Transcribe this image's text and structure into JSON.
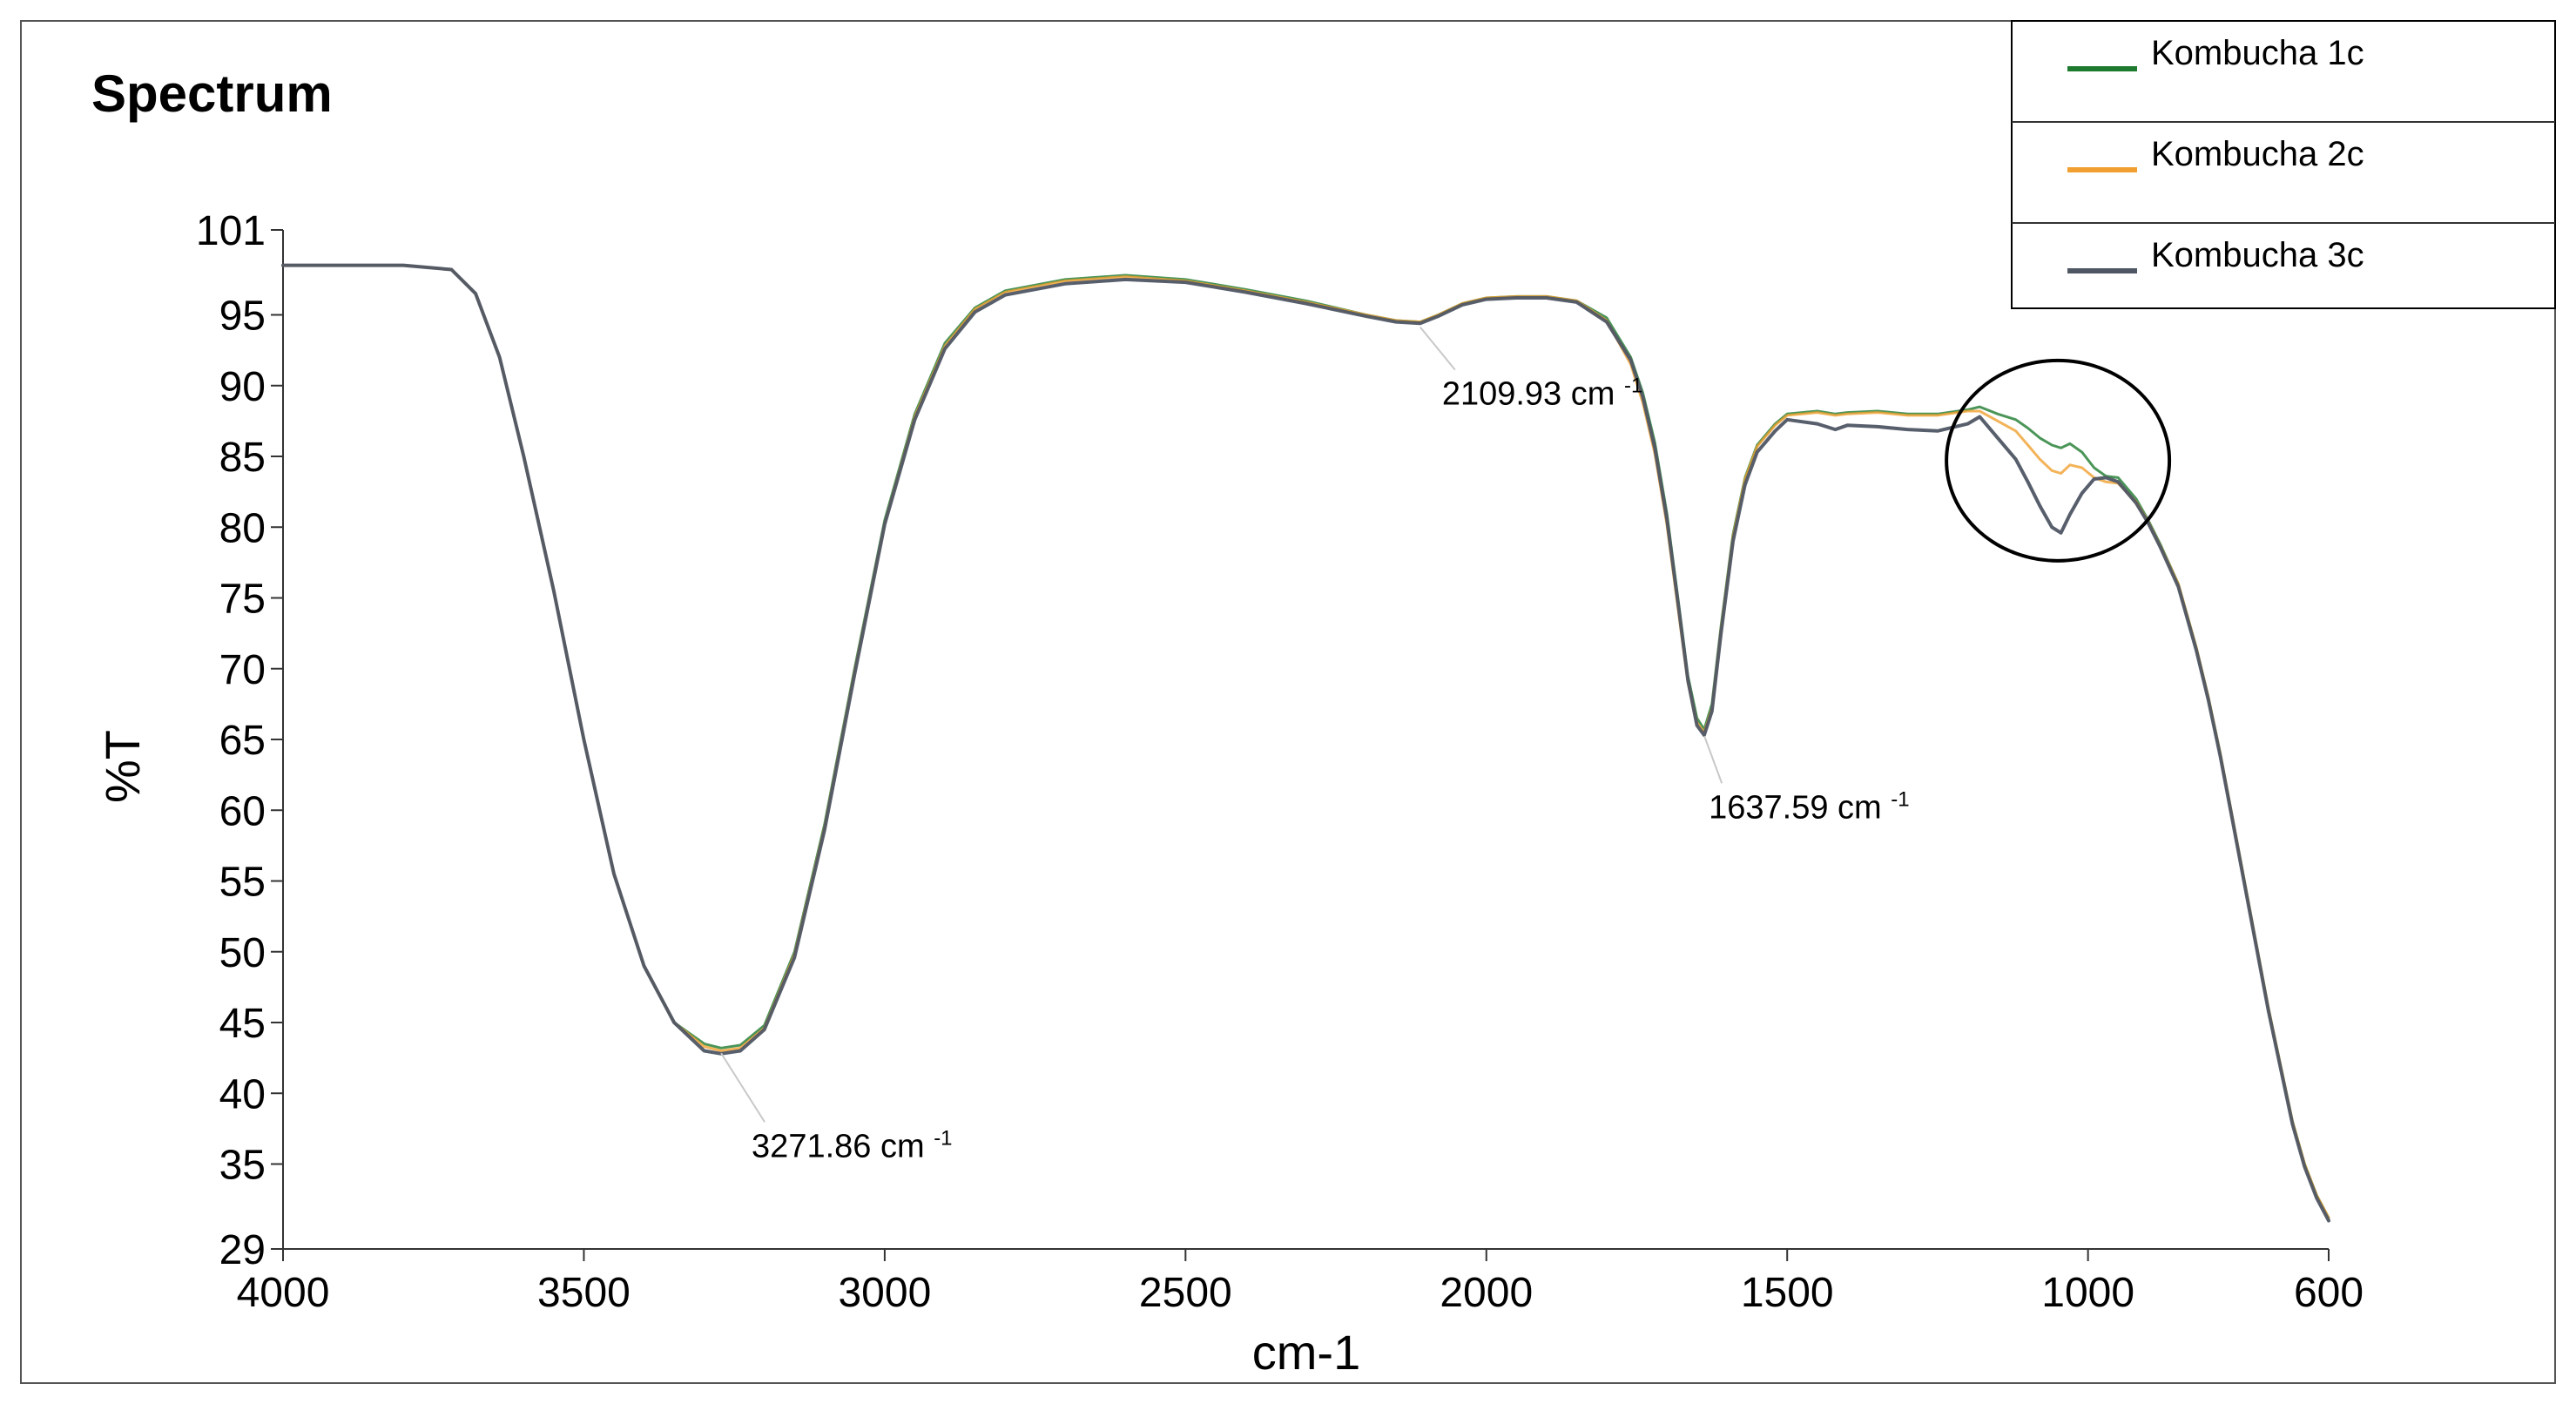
{
  "chart_data": {
    "type": "line",
    "title": "Spectrum",
    "xlabel": "cm-1",
    "ylabel": "%T",
    "xlim": [
      4000,
      600
    ],
    "ylim": [
      29,
      101
    ],
    "x_ticks": [
      4000,
      3500,
      3000,
      2500,
      2000,
      1500,
      1000,
      600
    ],
    "y_ticks": [
      101,
      95,
      90,
      85,
      80,
      75,
      70,
      65,
      60,
      55,
      50,
      45,
      40,
      35,
      29
    ],
    "grid": false,
    "legend_position": "top-right",
    "series": [
      {
        "name": "Kombucha 1c",
        "color": "#1e7a2e",
        "x": [
          4000,
          3800,
          3720,
          3680,
          3640,
          3600,
          3550,
          3500,
          3450,
          3400,
          3350,
          3300,
          3272,
          3240,
          3200,
          3150,
          3100,
          3050,
          3000,
          2950,
          2900,
          2850,
          2800,
          2700,
          2600,
          2500,
          2400,
          2300,
          2200,
          2150,
          2110,
          2080,
          2040,
          2000,
          1950,
          1900,
          1850,
          1800,
          1760,
          1740,
          1720,
          1700,
          1680,
          1665,
          1650,
          1638,
          1625,
          1610,
          1590,
          1570,
          1550,
          1520,
          1500,
          1450,
          1420,
          1400,
          1350,
          1300,
          1250,
          1200,
          1180,
          1150,
          1120,
          1100,
          1080,
          1060,
          1045,
          1030,
          1010,
          990,
          970,
          950,
          920,
          900,
          880,
          850,
          820,
          800,
          780,
          760,
          740,
          720,
          700,
          680,
          660,
          640,
          620,
          600
        ],
        "values": [
          98.5,
          98.5,
          98.2,
          96.5,
          92.0,
          85.0,
          75.5,
          65.0,
          55.5,
          49.0,
          45.0,
          43.5,
          43.2,
          43.4,
          44.8,
          50.0,
          59.0,
          70.0,
          80.5,
          88.0,
          93.0,
          95.5,
          96.7,
          97.5,
          97.8,
          97.5,
          96.8,
          96.0,
          95.0,
          94.6,
          94.5,
          95.0,
          95.8,
          96.2,
          96.3,
          96.3,
          96.0,
          94.8,
          92.0,
          89.5,
          86.0,
          81.0,
          74.5,
          69.5,
          66.5,
          65.7,
          67.5,
          73.0,
          79.5,
          83.5,
          85.8,
          87.3,
          88.0,
          88.2,
          88.0,
          88.1,
          88.2,
          88.0,
          88.0,
          88.3,
          88.5,
          88.0,
          87.6,
          87.0,
          86.3,
          85.8,
          85.6,
          85.9,
          85.3,
          84.2,
          83.6,
          83.5,
          82.0,
          80.5,
          78.8,
          76.0,
          71.5,
          68.0,
          64.0,
          59.5,
          55.0,
          50.5,
          46.0,
          42.0,
          38.0,
          35.0,
          32.8,
          31.2
        ]
      },
      {
        "name": "Kombucha 2c",
        "color": "#f0a030",
        "x": [
          4000,
          3800,
          3720,
          3680,
          3640,
          3600,
          3550,
          3500,
          3450,
          3400,
          3350,
          3300,
          3272,
          3240,
          3200,
          3150,
          3100,
          3050,
          3000,
          2950,
          2900,
          2850,
          2800,
          2700,
          2600,
          2500,
          2400,
          2300,
          2200,
          2150,
          2110,
          2080,
          2040,
          2000,
          1950,
          1900,
          1850,
          1800,
          1760,
          1740,
          1720,
          1700,
          1680,
          1665,
          1650,
          1638,
          1625,
          1610,
          1590,
          1570,
          1550,
          1520,
          1500,
          1450,
          1420,
          1400,
          1350,
          1300,
          1250,
          1200,
          1180,
          1150,
          1120,
          1100,
          1080,
          1060,
          1045,
          1030,
          1010,
          990,
          970,
          950,
          920,
          900,
          880,
          850,
          820,
          800,
          780,
          760,
          740,
          720,
          700,
          680,
          660,
          640,
          620,
          600
        ],
        "values": [
          98.5,
          98.5,
          98.2,
          96.5,
          92.0,
          85.0,
          75.5,
          65.0,
          55.5,
          49.0,
          45.0,
          43.3,
          43.0,
          43.2,
          44.6,
          49.8,
          58.8,
          69.8,
          80.3,
          87.8,
          92.8,
          95.4,
          96.6,
          97.4,
          97.7,
          97.4,
          96.7,
          95.9,
          95.0,
          94.6,
          94.5,
          95.0,
          95.8,
          96.2,
          96.3,
          96.3,
          96.0,
          94.6,
          91.5,
          88.8,
          85.2,
          80.2,
          73.8,
          69.0,
          66.2,
          65.5,
          67.2,
          72.8,
          79.3,
          83.4,
          85.7,
          87.2,
          87.9,
          88.1,
          87.9,
          88.0,
          88.1,
          87.9,
          87.9,
          88.2,
          88.2,
          87.5,
          86.8,
          85.8,
          84.8,
          84.0,
          83.8,
          84.4,
          84.2,
          83.5,
          83.2,
          83.1,
          81.8,
          80.4,
          78.7,
          76.0,
          71.5,
          68.0,
          64.0,
          59.5,
          55.0,
          50.5,
          46.0,
          42.0,
          38.0,
          35.0,
          32.8,
          31.2
        ]
      },
      {
        "name": "Kombucha 3c",
        "color": "#4f5664",
        "x": [
          4000,
          3800,
          3720,
          3680,
          3640,
          3600,
          3550,
          3500,
          3450,
          3400,
          3350,
          3300,
          3272,
          3240,
          3200,
          3150,
          3100,
          3050,
          3000,
          2950,
          2900,
          2850,
          2800,
          2700,
          2600,
          2500,
          2400,
          2300,
          2200,
          2150,
          2110,
          2080,
          2040,
          2000,
          1950,
          1900,
          1850,
          1800,
          1760,
          1740,
          1720,
          1700,
          1680,
          1665,
          1650,
          1638,
          1625,
          1610,
          1590,
          1570,
          1550,
          1520,
          1500,
          1450,
          1420,
          1400,
          1350,
          1300,
          1250,
          1200,
          1180,
          1150,
          1120,
          1100,
          1080,
          1060,
          1045,
          1030,
          1010,
          990,
          970,
          950,
          920,
          900,
          880,
          850,
          820,
          800,
          780,
          760,
          740,
          720,
          700,
          680,
          660,
          640,
          620,
          600
        ],
        "values": [
          98.5,
          98.5,
          98.2,
          96.5,
          92.0,
          85.0,
          75.5,
          65.0,
          55.5,
          49.0,
          45.0,
          43.0,
          42.8,
          43.0,
          44.5,
          49.6,
          58.6,
          69.6,
          80.2,
          87.6,
          92.6,
          95.2,
          96.4,
          97.2,
          97.5,
          97.3,
          96.6,
          95.8,
          94.9,
          94.5,
          94.4,
          94.9,
          95.7,
          96.1,
          96.2,
          96.2,
          95.9,
          94.5,
          91.8,
          89.2,
          85.6,
          80.6,
          74.2,
          69.2,
          66.0,
          65.3,
          67.0,
          72.5,
          79.0,
          83.0,
          85.3,
          86.8,
          87.6,
          87.3,
          86.9,
          87.2,
          87.1,
          86.9,
          86.8,
          87.3,
          87.8,
          86.3,
          84.8,
          83.2,
          81.5,
          80.0,
          79.6,
          80.9,
          82.4,
          83.4,
          83.5,
          83.2,
          81.7,
          80.3,
          78.6,
          75.8,
          71.3,
          67.8,
          63.8,
          59.3,
          54.8,
          50.3,
          45.8,
          41.8,
          37.8,
          34.8,
          32.6,
          31.0
        ]
      }
    ],
    "annotations": [
      {
        "text": "3271.86 cm",
        "sup": "-1",
        "x": 3271.86,
        "y": 43.2
      },
      {
        "text": "2109.93 cm",
        "sup": "-1",
        "x": 2109.93,
        "y": 94.5
      },
      {
        "text": "1637.59 cm",
        "sup": "-1",
        "x": 1637.59,
        "y": 65.6
      }
    ],
    "highlight": {
      "x_center": 1050,
      "y_center": 84.7
    }
  }
}
